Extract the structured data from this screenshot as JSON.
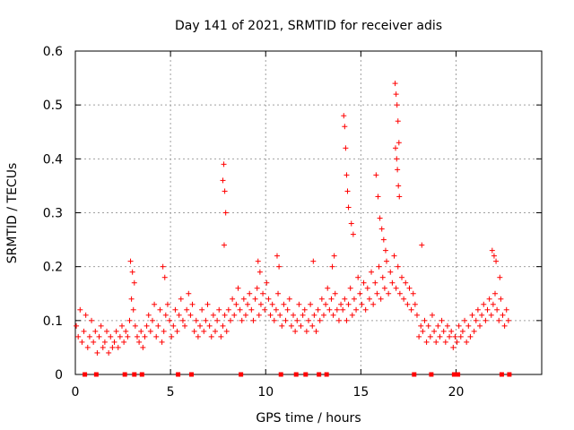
{
  "chart_data": {
    "type": "scatter",
    "title": "Day 141 of 2021, SRMTID for receiver adis",
    "xlabel": "GPS time / hours",
    "ylabel": "SRMTID / TECUs",
    "xlim": [
      0,
      24.5
    ],
    "ylim": [
      0,
      0.6
    ],
    "xticks": [
      0,
      5,
      10,
      15,
      20
    ],
    "yticks": [
      0,
      0.1,
      0.2,
      0.3,
      0.4,
      0.5,
      0.6
    ],
    "xtick_labels": [
      "0",
      "5",
      "10",
      "15",
      "20"
    ],
    "ytick_labels": [
      "0",
      "0.1",
      "0.2",
      "0.3",
      "0.4",
      "0.5",
      "0.6"
    ],
    "grid": true,
    "marker": "plus",
    "series_color": "#ff0000",
    "gap_markers_y": 0,
    "gap_markers_x": [
      0.5,
      1.1,
      2.6,
      3.1,
      3.5,
      5.4,
      6.1,
      8.7,
      10.8,
      11.6,
      12.1,
      12.8,
      13.2,
      17.8,
      18.7,
      19.9,
      20.1,
      22.4,
      22.8
    ],
    "series": [
      {
        "name": "SRMTID",
        "x": [
          0.05,
          0.15,
          0.25,
          0.35,
          0.45,
          0.55,
          0.65,
          0.75,
          0.85,
          0.95,
          1.05,
          1.15,
          1.25,
          1.35,
          1.45,
          1.55,
          1.65,
          1.75,
          1.85,
          1.95,
          2.05,
          2.15,
          2.25,
          2.35,
          2.45,
          2.55,
          2.65,
          2.75,
          2.85,
          2.95,
          3.05,
          3.15,
          3.25,
          3.35,
          3.45,
          3.55,
          3.65,
          3.75,
          3.85,
          3.95,
          4.05,
          4.15,
          4.25,
          4.35,
          4.45,
          4.55,
          4.65,
          4.75,
          4.85,
          4.95,
          5.05,
          5.15,
          5.25,
          5.35,
          5.45,
          5.55,
          5.65,
          5.75,
          5.85,
          5.95,
          6.05,
          6.15,
          6.25,
          6.35,
          6.45,
          6.55,
          6.65,
          6.75,
          6.85,
          6.95,
          7.05,
          7.15,
          7.25,
          7.35,
          7.45,
          7.55,
          7.65,
          7.75,
          7.85,
          7.95,
          8.05,
          8.15,
          8.25,
          8.35,
          8.45,
          8.55,
          8.65,
          8.75,
          8.85,
          8.95,
          9.05,
          9.15,
          9.25,
          9.35,
          9.45,
          9.55,
          9.65,
          9.75,
          9.85,
          9.95,
          10.05,
          10.15,
          10.25,
          10.35,
          10.45,
          10.55,
          10.65,
          10.75,
          10.85,
          10.95,
          11.05,
          11.15,
          11.25,
          11.35,
          11.45,
          11.55,
          11.65,
          11.75,
          11.85,
          11.95,
          12.05,
          12.15,
          12.25,
          12.35,
          12.45,
          12.55,
          12.65,
          12.75,
          12.85,
          12.95,
          13.05,
          13.15,
          13.25,
          13.35,
          13.45,
          13.55,
          13.65,
          13.75,
          13.85,
          13.95,
          14.05,
          14.15,
          14.25,
          14.35,
          14.45,
          14.55,
          14.65,
          14.75,
          14.85,
          14.95,
          15.05,
          15.15,
          15.25,
          15.35,
          15.45,
          15.55,
          15.65,
          15.75,
          15.85,
          15.95,
          16.05,
          16.15,
          16.25,
          16.35,
          16.45,
          16.55,
          16.65,
          16.75,
          16.85,
          16.95,
          17.05,
          17.15,
          17.25,
          17.35,
          17.45,
          17.55,
          17.65,
          17.75,
          17.85,
          17.95,
          18.05,
          18.15,
          18.25,
          18.35,
          18.45,
          18.55,
          18.65,
          18.75,
          18.85,
          18.95,
          19.05,
          19.15,
          19.25,
          19.35,
          19.45,
          19.55,
          19.65,
          19.75,
          19.85,
          19.95,
          20.05,
          20.15,
          20.25,
          20.35,
          20.45,
          20.55,
          20.65,
          20.75,
          20.85,
          20.95,
          21.05,
          21.15,
          21.25,
          21.35,
          21.45,
          21.55,
          21.65,
          21.75,
          21.85,
          21.95,
          22.05,
          22.15,
          22.25,
          22.35,
          22.45,
          22.55,
          22.65,
          22.75,
          7.8,
          7.85,
          7.9,
          7.75,
          7.82,
          14.1,
          14.15,
          14.2,
          14.25,
          14.3,
          14.35,
          14.5,
          14.6,
          15.8,
          15.9,
          16.0,
          16.1,
          16.2,
          16.3,
          16.8,
          16.85,
          16.9,
          16.95,
          17.0,
          16.82,
          16.88,
          16.92,
          16.97,
          17.02,
          2.9,
          3.0,
          3.1,
          4.6,
          4.7,
          9.6,
          9.7,
          10.6,
          10.7,
          12.5,
          13.5,
          13.6,
          18.2,
          21.9,
          22.0,
          22.1,
          22.3
        ],
        "y": [
          0.09,
          0.07,
          0.12,
          0.06,
          0.08,
          0.11,
          0.05,
          0.07,
          0.1,
          0.06,
          0.08,
          0.04,
          0.07,
          0.09,
          0.05,
          0.06,
          0.08,
          0.04,
          0.07,
          0.05,
          0.06,
          0.08,
          0.05,
          0.07,
          0.09,
          0.06,
          0.08,
          0.07,
          0.1,
          0.14,
          0.12,
          0.09,
          0.07,
          0.06,
          0.08,
          0.05,
          0.07,
          0.09,
          0.11,
          0.08,
          0.1,
          0.13,
          0.07,
          0.09,
          0.12,
          0.06,
          0.08,
          0.11,
          0.13,
          0.1,
          0.07,
          0.09,
          0.12,
          0.08,
          0.11,
          0.14,
          0.1,
          0.09,
          0.12,
          0.15,
          0.11,
          0.13,
          0.08,
          0.1,
          0.07,
          0.09,
          0.12,
          0.08,
          0.1,
          0.13,
          0.09,
          0.07,
          0.11,
          0.08,
          0.1,
          0.12,
          0.07,
          0.09,
          0.11,
          0.08,
          0.12,
          0.1,
          0.14,
          0.11,
          0.13,
          0.16,
          0.12,
          0.1,
          0.14,
          0.11,
          0.13,
          0.15,
          0.12,
          0.1,
          0.14,
          0.16,
          0.11,
          0.13,
          0.15,
          0.12,
          0.17,
          0.14,
          0.11,
          0.13,
          0.1,
          0.12,
          0.15,
          0.11,
          0.09,
          0.13,
          0.1,
          0.12,
          0.14,
          0.09,
          0.11,
          0.08,
          0.1,
          0.13,
          0.09,
          0.11,
          0.12,
          0.08,
          0.1,
          0.13,
          0.09,
          0.11,
          0.08,
          0.12,
          0.1,
          0.14,
          0.11,
          0.13,
          0.16,
          0.12,
          0.14,
          0.11,
          0.15,
          0.12,
          0.1,
          0.13,
          0.12,
          0.14,
          0.1,
          0.13,
          0.16,
          0.11,
          0.14,
          0.12,
          0.18,
          0.15,
          0.13,
          0.17,
          0.12,
          0.16,
          0.14,
          0.19,
          0.13,
          0.17,
          0.15,
          0.2,
          0.14,
          0.18,
          0.16,
          0.21,
          0.15,
          0.19,
          0.17,
          0.22,
          0.16,
          0.2,
          0.15,
          0.18,
          0.14,
          0.17,
          0.13,
          0.16,
          0.12,
          0.15,
          0.13,
          0.11,
          0.07,
          0.09,
          0.08,
          0.1,
          0.06,
          0.09,
          0.07,
          0.11,
          0.08,
          0.06,
          0.09,
          0.07,
          0.1,
          0.08,
          0.06,
          0.09,
          0.07,
          0.08,
          0.05,
          0.07,
          0.06,
          0.09,
          0.07,
          0.08,
          0.1,
          0.06,
          0.09,
          0.07,
          0.11,
          0.08,
          0.1,
          0.12,
          0.09,
          0.11,
          0.13,
          0.1,
          0.12,
          0.14,
          0.11,
          0.13,
          0.15,
          0.12,
          0.1,
          0.14,
          0.11,
          0.09,
          0.12,
          0.1,
          0.39,
          0.34,
          0.3,
          0.36,
          0.24,
          0.48,
          0.46,
          0.42,
          0.37,
          0.34,
          0.31,
          0.28,
          0.26,
          0.37,
          0.33,
          0.29,
          0.27,
          0.25,
          0.23,
          0.54,
          0.52,
          0.5,
          0.47,
          0.43,
          0.42,
          0.4,
          0.38,
          0.35,
          0.33,
          0.21,
          0.19,
          0.17,
          0.2,
          0.18,
          0.21,
          0.19,
          0.22,
          0.2,
          0.21,
          0.2,
          0.22,
          0.24,
          0.23,
          0.22,
          0.21,
          0.18
        ]
      }
    ]
  }
}
